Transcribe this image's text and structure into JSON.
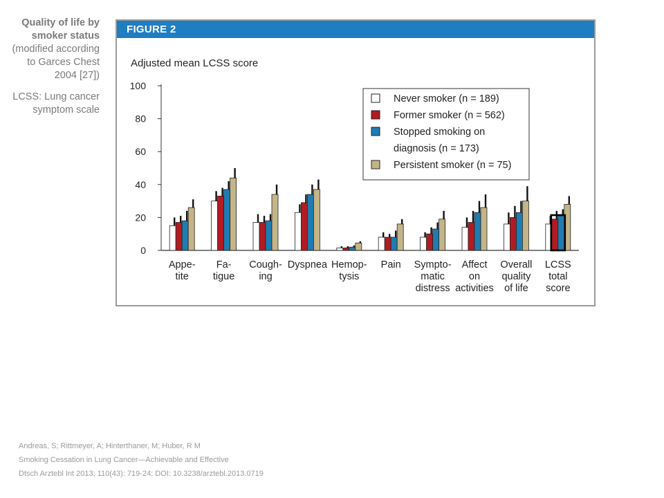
{
  "side_caption": {
    "title_lines": [
      "Quality of life by",
      "smoker status"
    ],
    "source_lines": [
      "(modified according",
      "to Garces Chest",
      "2004 [27])"
    ],
    "abbrev_lines": [
      "LCSS: Lung cancer",
      "symptom scale"
    ]
  },
  "figure": {
    "header": "FIGURE 2"
  },
  "citation": {
    "authors": "Andreas, S; Rittmeyer, A; Hinterthaner, M; Huber, R M",
    "title": "Smoking Cessation in Lung Cancer—Achievable and Effective",
    "ref": "Dtsch Arztebl Int 2013; 110(43): 719-24; DOI: 10.3238/arztebl.2013.0719"
  },
  "chart_data": {
    "type": "bar",
    "title": "Adjusted mean LCSS score",
    "xlabel": "",
    "ylabel": "",
    "ylim": [
      0,
      100
    ],
    "yticks": [
      0,
      20,
      40,
      60,
      80,
      100
    ],
    "grid": false,
    "legend_position": "top-right",
    "categories": [
      [
        "Appe-",
        "tite"
      ],
      [
        "Fa-",
        "tigue"
      ],
      [
        "Cough-",
        "ing"
      ],
      [
        "Dyspnea"
      ],
      [
        "Hemop-",
        "tysis"
      ],
      [
        "Pain"
      ],
      [
        "Sympto-",
        "matic",
        "distress"
      ],
      [
        "Affect",
        "on",
        "activities"
      ],
      [
        "Overall",
        "quality",
        "of life"
      ],
      [
        "LCSS",
        "total",
        "score"
      ]
    ],
    "series": [
      {
        "name": "Never smoker (n = 189)",
        "legend_lines": [
          "Never smoker (n = 189)"
        ],
        "color": "#ffffff",
        "values": [
          15,
          30,
          17,
          23,
          1.5,
          8,
          8,
          14,
          16,
          16
        ],
        "error_top": [
          20,
          36,
          22,
          28,
          2.5,
          11,
          11,
          20,
          23,
          21
        ]
      },
      {
        "name": "Former smoker (n = 562)",
        "legend_lines": [
          "Former smoker (n = 562)"
        ],
        "color": "#b01c22",
        "values": [
          17,
          33,
          17,
          29,
          1.5,
          8,
          10,
          17,
          20,
          19
        ],
        "error_top": [
          21,
          38,
          21,
          34,
          2.5,
          10,
          14,
          24,
          27,
          24
        ]
      },
      {
        "name": "Stopped smoking on diagnosis (n = 173)",
        "legend_lines": [
          "Stopped smoking on",
          "diagnosis (n = 173)"
        ],
        "color": "#1f7cb2",
        "values": [
          18,
          37,
          18,
          34,
          2,
          8,
          13,
          23,
          23,
          21
        ],
        "error_top": [
          24,
          42,
          22,
          40,
          3,
          12,
          17,
          30,
          30,
          25
        ]
      },
      {
        "name": "Persistent smoker (n = 75)",
        "legend_lines": [
          "Persistent smoker (n = 75)"
        ],
        "color": "#c4b588",
        "values": [
          26,
          44,
          34,
          37,
          4.5,
          16,
          19,
          26,
          30,
          28
        ],
        "error_top": [
          31,
          50,
          40,
          43,
          5.5,
          19,
          24,
          34,
          39,
          33
        ]
      }
    ],
    "highlighted_category_index": 9
  }
}
